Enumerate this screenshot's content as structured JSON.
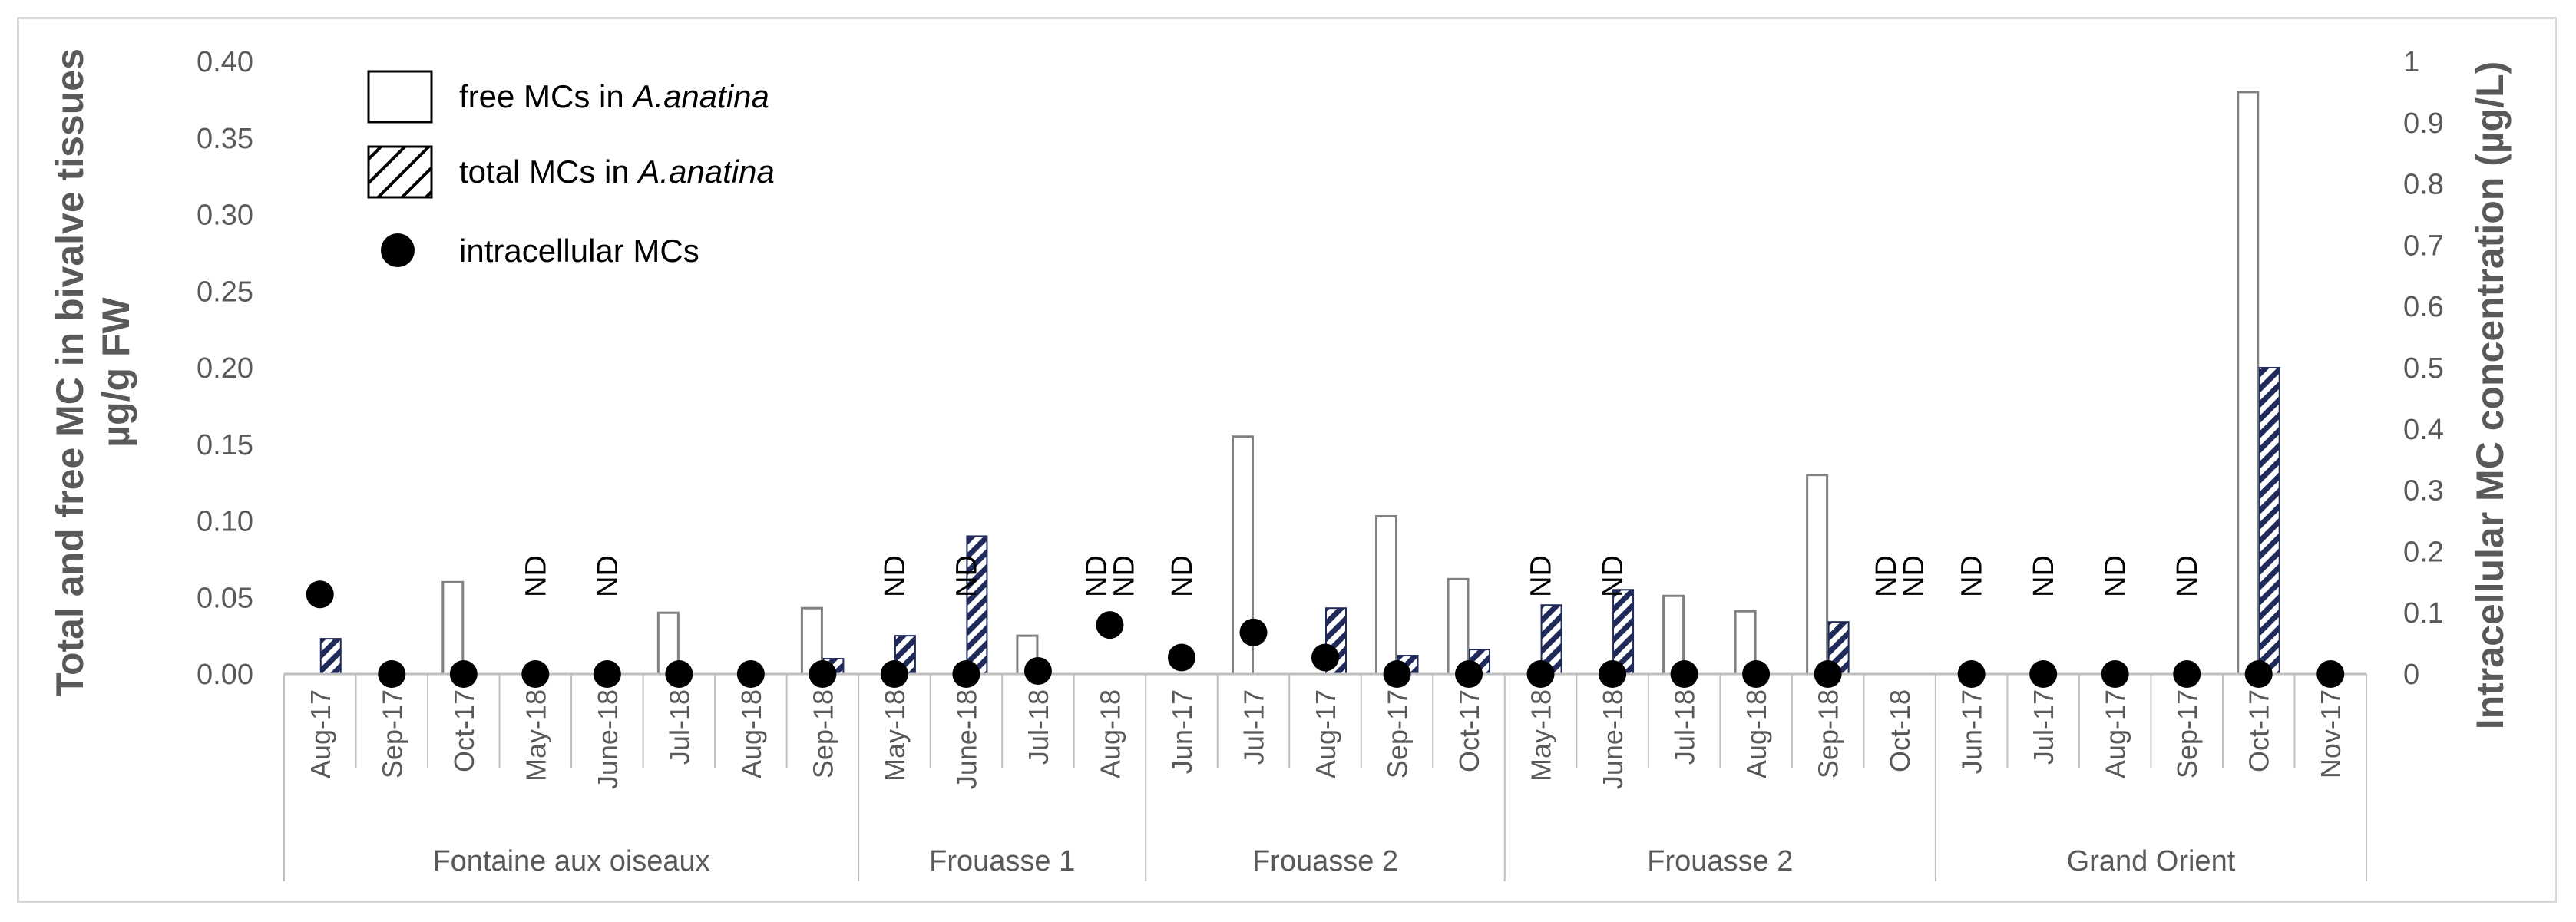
{
  "chart_data": {
    "type": "bar",
    "y_left": {
      "label_line1": "Total and free MC in bivalve tissues",
      "label_line2": "µg/g FW",
      "min": 0,
      "max": 0.4,
      "step": 0.05,
      "decimals": 2
    },
    "y_right": {
      "label": "Intracellular MC concentration  (µg/L)",
      "min": 0,
      "max": 1,
      "step": 0.1
    },
    "categories": [
      "Aug-17",
      "Sep-17",
      "Oct-17",
      "May-18",
      "June-18",
      "Jul-18",
      "Aug-18",
      "Sep-18",
      "May-18",
      "June-18",
      "Jul-18",
      "Aug-18",
      "Jun-17",
      "Jul-17",
      "Aug-17",
      "Sep-17",
      "Oct-17",
      "May-18",
      "June-18",
      "Jul-18",
      "Aug-18",
      "Sep-18",
      "Oct-18",
      "Jun-17",
      "Jul-17",
      "Aug-17",
      "Sep-17",
      "Oct-17",
      "Nov-17"
    ],
    "groups": [
      {
        "name": "Fontaine aux oiseaux",
        "start": 0,
        "end": 7
      },
      {
        "name": "Frouasse 1",
        "start": 8,
        "end": 11
      },
      {
        "name": "Frouasse 2",
        "start": 12,
        "end": 16
      },
      {
        "name": "Frouasse 2",
        "start": 17,
        "end": 22
      },
      {
        "name": "Grand Orient",
        "start": 23,
        "end": 28
      }
    ],
    "series": [
      {
        "name": "free MCs in ",
        "name_italic": "A.anatina",
        "axis": "left",
        "values": [
          0,
          0,
          0.06,
          0,
          0,
          0.04,
          0,
          0.043,
          0,
          0,
          0.025,
          0,
          0,
          0.155,
          0,
          0.103,
          0.062,
          0,
          0,
          0.051,
          0.041,
          0.13,
          0,
          0,
          0,
          0,
          0,
          0.38,
          0
        ]
      },
      {
        "name": "total MCs in ",
        "name_italic": "A.anatina",
        "axis": "left",
        "values": [
          0.023,
          0,
          0,
          0,
          0,
          0,
          0,
          0.01,
          0.025,
          0.09,
          0,
          0,
          0,
          0,
          0.043,
          0.012,
          0.016,
          0.045,
          0.055,
          0,
          0,
          0.034,
          0,
          0,
          0,
          0,
          0,
          0.2,
          0
        ]
      },
      {
        "name": "intracellular MCs",
        "axis": "right",
        "values": [
          0.13,
          0,
          0,
          0,
          0,
          0,
          0,
          0,
          0,
          0,
          0.005,
          0.08,
          0.027,
          0.068,
          0.027,
          0,
          0,
          0,
          0,
          0,
          0,
          0,
          null,
          0,
          0,
          0,
          0,
          0,
          0
        ]
      }
    ],
    "nd_labels": [
      {
        "index": 3,
        "text": [
          "ND"
        ]
      },
      {
        "index": 4,
        "text": [
          "ND"
        ]
      },
      {
        "index": 8,
        "text": [
          "ND"
        ]
      },
      {
        "index": 9,
        "text": [
          "ND"
        ]
      },
      {
        "index": 11,
        "text": [
          "ND",
          "ND"
        ]
      },
      {
        "index": 12,
        "text": [
          "ND"
        ]
      },
      {
        "index": 17,
        "text": [
          "ND"
        ]
      },
      {
        "index": 18,
        "text": [
          "ND"
        ]
      },
      {
        "index": 22,
        "text": [
          "ND",
          "ND"
        ]
      },
      {
        "index": 23,
        "text": [
          "ND"
        ]
      },
      {
        "index": 24,
        "text": [
          "ND"
        ]
      },
      {
        "index": 25,
        "text": [
          "ND"
        ]
      },
      {
        "index": 26,
        "text": [
          "ND"
        ]
      }
    ],
    "colors": {
      "free_fill": "#ffffff",
      "free_stroke": "#808080",
      "hatch_dark": "#1f2a5a",
      "dot": "#000000",
      "axis": "#bfbfbf",
      "text": "#595959"
    },
    "legend_placement": "top-left",
    "grid": false
  }
}
